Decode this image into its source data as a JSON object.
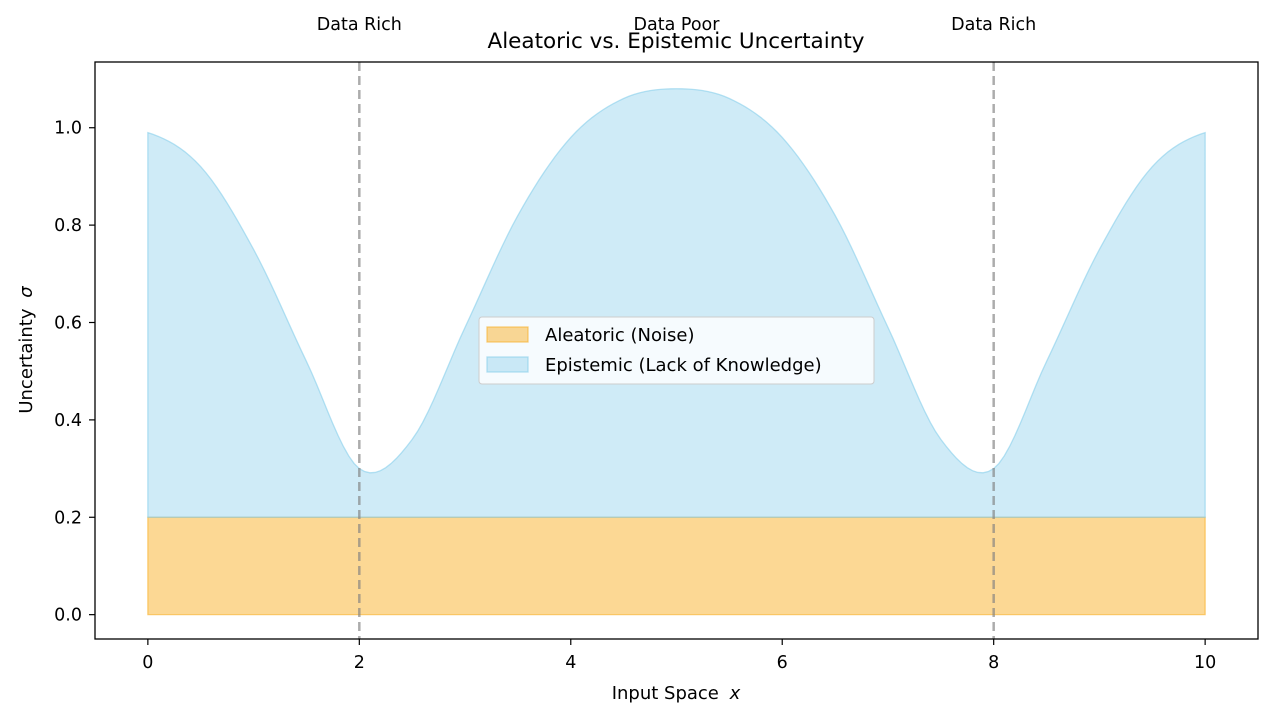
{
  "chart_data": {
    "type": "area",
    "title": "Aleatoric vs. Epistemic Uncertainty",
    "xlabel": "Input Space",
    "xlabel_var": "x",
    "ylabel": "Uncertainty",
    "ylabel_var": "σ",
    "xlim": [
      -0.5,
      10.5
    ],
    "ylim": [
      -0.05,
      1.135
    ],
    "xticks": [
      0,
      2,
      4,
      6,
      8,
      10
    ],
    "xtick_labels": [
      "0",
      "2",
      "4",
      "6",
      "8",
      "10"
    ],
    "yticks": [
      0.0,
      0.2,
      0.4,
      0.6,
      0.8,
      1.0
    ],
    "ytick_labels": [
      "0.0",
      "0.2",
      "0.4",
      "0.6",
      "0.8",
      "1.0"
    ],
    "grid": false,
    "legend_position": "center",
    "x": [
      0,
      0.5,
      1,
      1.5,
      2,
      2.5,
      3,
      3.5,
      4,
      4.5,
      5,
      5.5,
      6,
      6.5,
      7,
      7.5,
      8,
      8.5,
      9,
      9.5,
      10
    ],
    "series": [
      {
        "name": "Aleatoric (Noise)",
        "color": "#f9b12a",
        "lower": [
          0,
          0,
          0,
          0,
          0,
          0,
          0,
          0,
          0,
          0,
          0,
          0,
          0,
          0,
          0,
          0,
          0,
          0,
          0,
          0,
          0
        ],
        "upper": [
          0.2,
          0.2,
          0.2,
          0.2,
          0.2,
          0.2,
          0.2,
          0.2,
          0.2,
          0.2,
          0.2,
          0.2,
          0.2,
          0.2,
          0.2,
          0.2,
          0.2,
          0.2,
          0.2,
          0.2,
          0.2
        ]
      },
      {
        "name": "Epistemic (Lack of Knowledge)",
        "color": "#87ceeb",
        "lower": [
          0.2,
          0.2,
          0.2,
          0.2,
          0.2,
          0.2,
          0.2,
          0.2,
          0.2,
          0.2,
          0.2,
          0.2,
          0.2,
          0.2,
          0.2,
          0.2,
          0.2,
          0.2,
          0.2,
          0.2,
          0.2
        ],
        "upper": [
          0.99,
          0.92,
          0.75,
          0.52,
          0.3,
          0.36,
          0.59,
          0.82,
          0.98,
          1.06,
          1.08,
          1.06,
          0.98,
          0.82,
          0.59,
          0.36,
          0.3,
          0.52,
          0.75,
          0.92,
          0.99
        ]
      }
    ],
    "vlines": [
      {
        "x": 2,
        "label": "Data Rich"
      },
      {
        "x": 8,
        "label": "Data Rich"
      }
    ],
    "annotations": [
      {
        "x": 2,
        "text": "Data Rich"
      },
      {
        "x": 5,
        "text": "Data Poor"
      },
      {
        "x": 8,
        "text": "Data Rich"
      }
    ]
  }
}
